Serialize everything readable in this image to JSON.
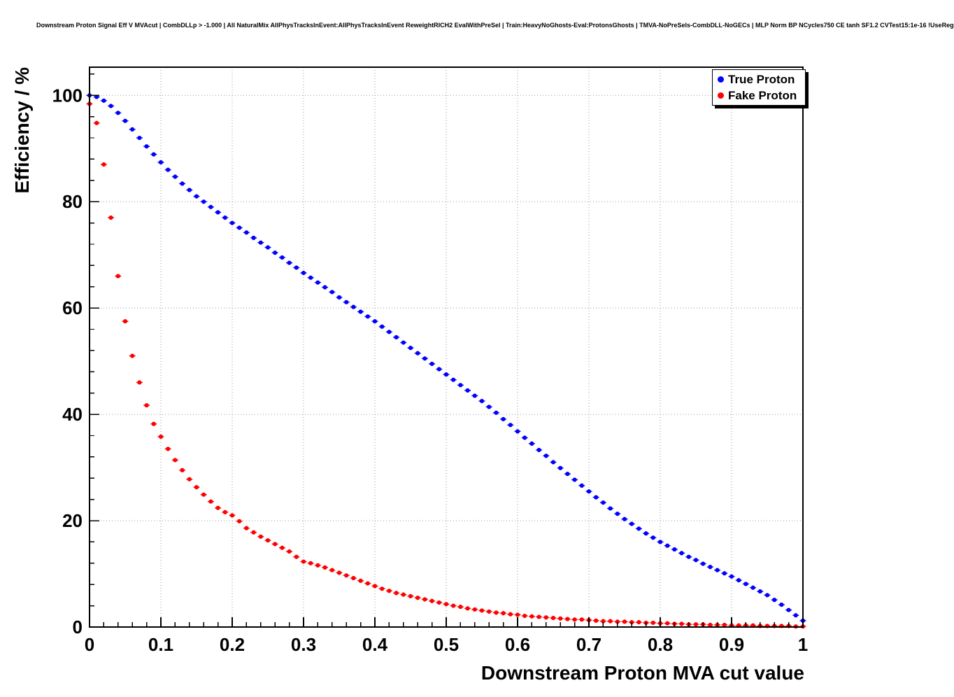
{
  "title": "Downstream Proton Signal Eff V MVAcut | CombDLLp > -1.000 | All NaturalMix AllPhysTracksInEvent:AllPhysTracksInEvent ReweightRICH2 EvalWithPreSel | Train:HeavyNoGhosts-Eval:ProtonsGhosts | TMVA-NoPreSels-CombDLL-NoGECs | MLP Norm BP NCycles750 CE tanh SF1.2 CVTest15:1e-16 !UseReg",
  "chart_data": {
    "type": "scatter",
    "title": "Downstream Proton Signal Eff V MVAcut",
    "xlabel": "Downstream Proton MVA cut value",
    "ylabel": "Efficiency / %",
    "xlim": [
      0,
      1
    ],
    "ylim": [
      0,
      105.3
    ],
    "grid": true,
    "grid_color": "#999999",
    "legend_position": "top-right",
    "x_start": 0,
    "x_step": 0.01,
    "x_minor_step": 0.02,
    "y_minor_step": 4,
    "x_ticks": [
      0,
      0.1,
      0.2,
      0.3,
      0.4,
      0.5,
      0.6,
      0.7,
      0.8,
      0.9,
      1
    ],
    "x_tick_labels": [
      "0",
      "0.1",
      "0.2",
      "0.3",
      "0.4",
      "0.5",
      "0.6",
      "0.7",
      "0.8",
      "0.9",
      "1"
    ],
    "y_ticks": [
      0,
      20,
      40,
      60,
      80,
      100
    ],
    "y_tick_labels": [
      "0",
      "20",
      "40",
      "60",
      "80",
      "100"
    ],
    "series": [
      {
        "name": "True Proton",
        "color": "#0000ff",
        "values": [
          100.0,
          99.7,
          99.0,
          98.0,
          96.7,
          95.2,
          93.6,
          92.0,
          90.4,
          88.9,
          87.4,
          86.0,
          84.7,
          83.4,
          82.2,
          81.0,
          80.0,
          79.0,
          78.0,
          77.0,
          76.0,
          75.1,
          74.2,
          73.2,
          72.3,
          71.4,
          70.4,
          69.5,
          68.5,
          67.6,
          66.6,
          65.7,
          64.8,
          63.9,
          63.0,
          62.0,
          61.1,
          60.2,
          59.3,
          58.4,
          57.5,
          56.5,
          55.5,
          54.5,
          53.5,
          52.5,
          51.5,
          50.5,
          49.5,
          48.5,
          47.5,
          46.5,
          45.5,
          44.5,
          43.5,
          42.5,
          41.4,
          40.3,
          39.1,
          38.0,
          36.8,
          35.6,
          34.5,
          33.3,
          32.2,
          31.0,
          29.9,
          28.8,
          27.7,
          26.6,
          25.5,
          24.4,
          23.4,
          22.3,
          21.3,
          20.3,
          19.4,
          18.5,
          17.6,
          16.8,
          16.0,
          15.3,
          14.6,
          13.9,
          13.2,
          12.6,
          11.9,
          11.3,
          10.7,
          10.1,
          9.5,
          8.8,
          8.1,
          7.4,
          6.7,
          6.0,
          5.1,
          4.2,
          3.2,
          2.2,
          1.2
        ]
      },
      {
        "name": "Fake Proton",
        "color": "#ff0000",
        "values": [
          98.4,
          94.8,
          87.0,
          77.0,
          66.0,
          57.5,
          51.0,
          46.0,
          41.7,
          38.2,
          35.8,
          33.5,
          31.4,
          29.5,
          27.8,
          26.3,
          24.9,
          23.6,
          22.4,
          21.6,
          21.0,
          19.9,
          18.6,
          17.8,
          17.0,
          16.3,
          15.6,
          14.9,
          14.2,
          13.2,
          12.3,
          12.0,
          11.6,
          11.2,
          10.7,
          10.2,
          9.7,
          9.2,
          8.7,
          8.2,
          7.7,
          7.2,
          6.8,
          6.4,
          6.1,
          5.8,
          5.5,
          5.2,
          4.9,
          4.6,
          4.3,
          4.0,
          3.8,
          3.5,
          3.3,
          3.1,
          2.9,
          2.7,
          2.6,
          2.4,
          2.3,
          2.1,
          2.0,
          1.9,
          1.8,
          1.7,
          1.6,
          1.5,
          1.4,
          1.4,
          1.3,
          1.2,
          1.1,
          1.1,
          1.0,
          1.0,
          0.9,
          0.9,
          0.8,
          0.8,
          0.7,
          0.7,
          0.6,
          0.6,
          0.5,
          0.5,
          0.5,
          0.4,
          0.4,
          0.4,
          0.3,
          0.3,
          0.3,
          0.3,
          0.2,
          0.2,
          0.2,
          0.2,
          0.2,
          0.1,
          0.1
        ]
      }
    ]
  }
}
